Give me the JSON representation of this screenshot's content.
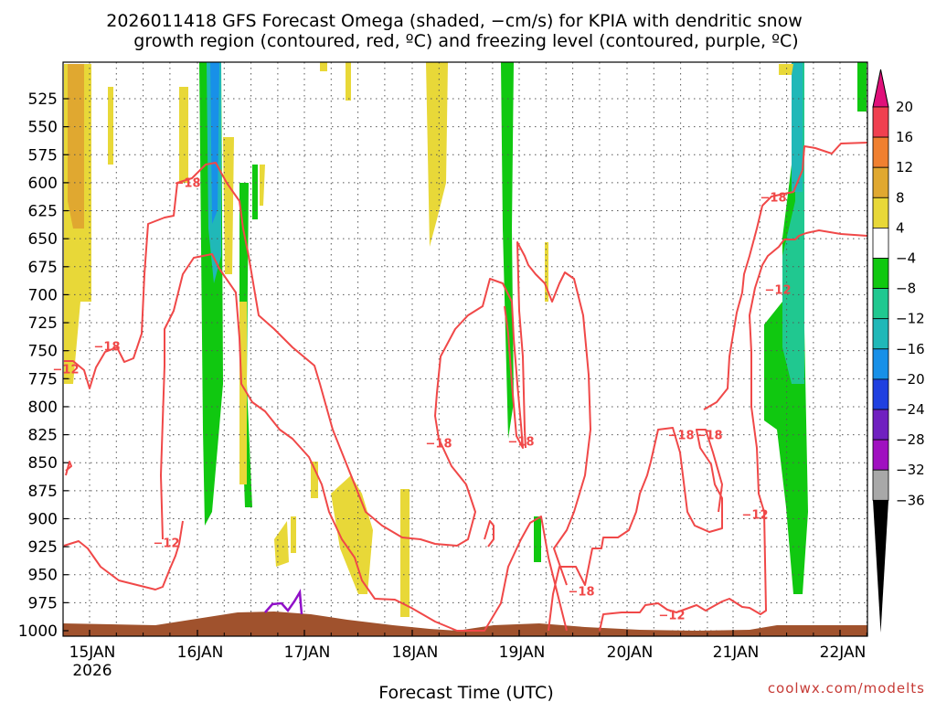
{
  "chart_data": {
    "type": "heatmap",
    "title_lines": [
      "2026011418 GFS Forecast Omega (shaded, −cm/s) for KPIA with dendritic snow",
      "growth region (contoured, red, ºC) and freezing level (contoured, purple, ºC)"
    ],
    "xlabel": "Forecast Time (UTC)",
    "x_ticks": [
      "15JAN",
      "16JAN",
      "17JAN",
      "18JAN",
      "19JAN",
      "20JAN",
      "21JAN",
      "22JAN"
    ],
    "x_year": "2026",
    "y_ticks": [
      525,
      550,
      575,
      600,
      625,
      650,
      675,
      700,
      725,
      750,
      775,
      800,
      825,
      850,
      875,
      900,
      925,
      950,
      975,
      1000
    ],
    "ylim": [
      1000,
      500
    ],
    "grid": true,
    "colorbar": {
      "labels": [
        "20",
        "16",
        "12",
        "8",
        "4",
        "−4",
        "−8",
        "−12",
        "−16",
        "−20",
        "−24",
        "−28",
        "−32",
        "−36"
      ],
      "colors": [
        "#f04050",
        "#f08030",
        "#e0a830",
        "#e8d838",
        "#ffffff",
        "#10c810",
        "#20c890",
        "#20b8b8",
        "#1890e8",
        "#2040e0",
        "#7020c0",
        "#a010c0",
        "#a8a8a8"
      ],
      "top_arrow_color": "#e0107a",
      "bottom_arrow_color": "#000000"
    },
    "dgz_contour_labels": [
      "−18",
      "−18",
      "−12",
      "−12",
      "−18",
      "−18",
      "−18",
      "−18",
      "−18",
      "−18",
      "−12",
      "−12",
      "−12"
    ],
    "colors": {
      "dgz_contour": "#f04848",
      "freezing_level": "#9010c8",
      "terrain": "#a0522d"
    },
    "credit": "coolwx.com/modelts"
  }
}
